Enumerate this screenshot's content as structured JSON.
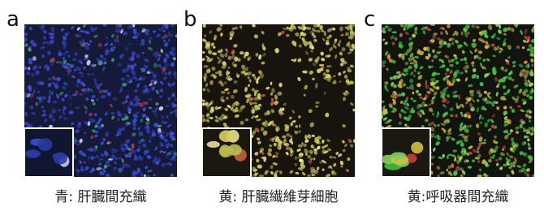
{
  "panels": [
    {
      "label": "a",
      "caption": "青: 肝臓間充織"
    },
    {
      "label": "b",
      "caption": "黄: 肝臓繊維芽細胞"
    },
    {
      "label": "c",
      "caption": "黄:呼吸器間充織"
    }
  ]
}
